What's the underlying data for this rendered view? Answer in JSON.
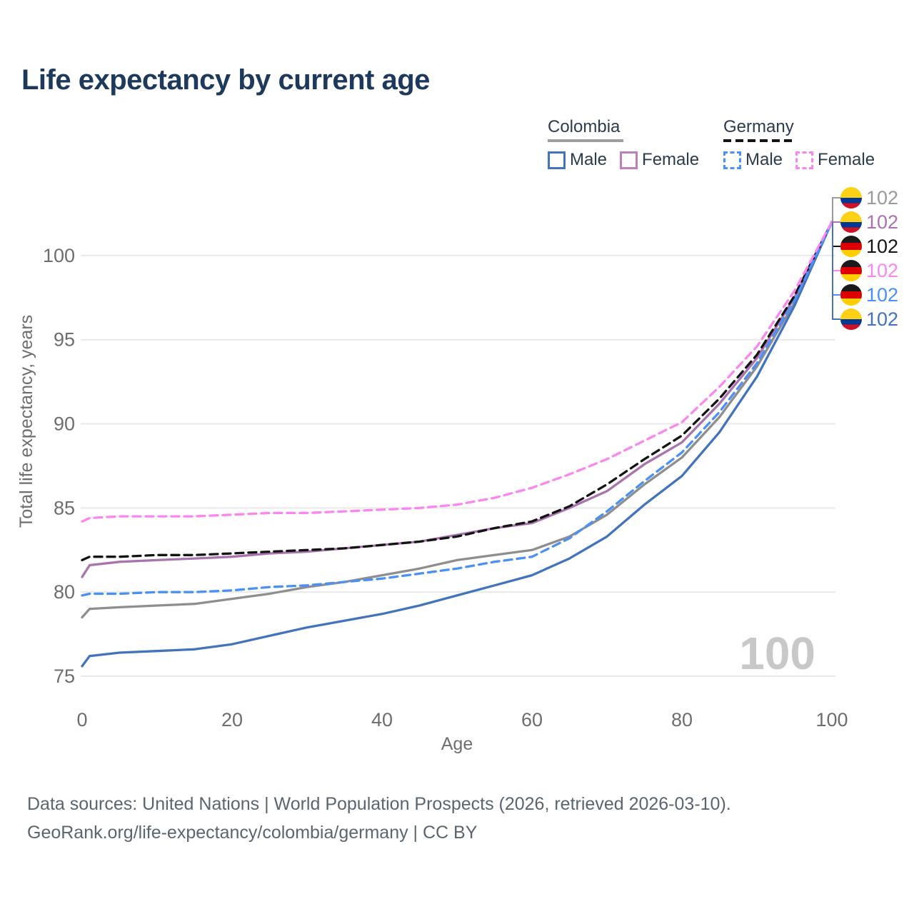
{
  "title": "Life expectancy by current age",
  "legend": {
    "colombia": {
      "title": "Colombia",
      "male_label": "Male",
      "female_label": "Female",
      "line_color": "#9e9e9e",
      "male_color": "#4273bd",
      "female_color": "#bd7fc0"
    },
    "germany": {
      "title": "Germany",
      "male_label": "Male",
      "female_label": "Female",
      "line_color": "#141414",
      "male_color": "#4a90f7",
      "female_color": "#fc86f0"
    }
  },
  "watermark": "100",
  "chart_data": {
    "type": "line",
    "title": "Life expectancy by current age",
    "xlabel": "Age",
    "ylabel": "Total life expectancy, years",
    "xlim": [
      0,
      100
    ],
    "ylim": [
      75,
      102.5
    ],
    "xticks": [
      0,
      20,
      40,
      60,
      80,
      100
    ],
    "yticks": [
      75,
      80,
      85,
      90,
      95,
      100
    ],
    "grid": "horizontal-only",
    "legend_position": "top-right",
    "x": [
      0,
      1,
      5,
      10,
      15,
      20,
      25,
      30,
      35,
      40,
      45,
      50,
      55,
      60,
      65,
      70,
      75,
      80,
      85,
      90,
      95,
      100
    ],
    "series": [
      {
        "name": "Colombia",
        "color": "#8e8e8e",
        "dash": false,
        "values": [
          78.5,
          79.0,
          79.1,
          79.2,
          79.3,
          79.6,
          79.9,
          80.3,
          80.6,
          81.0,
          81.4,
          81.9,
          82.2,
          82.5,
          83.3,
          84.6,
          86.4,
          88.0,
          90.4,
          93.4,
          97.2,
          102
        ]
      },
      {
        "name": "Colombia Male",
        "color": "#4273bd",
        "dash": false,
        "values": [
          75.6,
          76.2,
          76.4,
          76.5,
          76.6,
          76.9,
          77.4,
          77.9,
          78.3,
          78.7,
          79.2,
          79.8,
          80.4,
          81.0,
          82.0,
          83.3,
          85.2,
          86.9,
          89.5,
          92.8,
          97.0,
          102
        ]
      },
      {
        "name": "Colombia Female",
        "color": "#a873ae",
        "dash": false,
        "values": [
          80.9,
          81.6,
          81.8,
          81.9,
          82.0,
          82.1,
          82.3,
          82.4,
          82.6,
          82.8,
          83.0,
          83.4,
          83.8,
          84.1,
          85.0,
          86.0,
          87.6,
          88.9,
          91.2,
          93.9,
          97.5,
          102
        ]
      },
      {
        "name": "Germany",
        "color": "#141414",
        "dash": true,
        "values": [
          81.9,
          82.1,
          82.1,
          82.2,
          82.2,
          82.3,
          82.4,
          82.5,
          82.6,
          82.8,
          83.0,
          83.3,
          83.8,
          84.2,
          85.1,
          86.4,
          87.9,
          89.3,
          91.5,
          94.1,
          97.6,
          102
        ]
      },
      {
        "name": "Germany Male",
        "color": "#4a90f7",
        "dash": true,
        "values": [
          79.8,
          79.9,
          79.9,
          80.0,
          80.0,
          80.1,
          80.3,
          80.4,
          80.6,
          80.8,
          81.1,
          81.4,
          81.8,
          82.1,
          83.2,
          84.8,
          86.6,
          88.3,
          90.7,
          93.6,
          97.3,
          102
        ]
      },
      {
        "name": "Germany Female",
        "color": "#fc86f0",
        "dash": true,
        "values": [
          84.2,
          84.4,
          84.5,
          84.5,
          84.5,
          84.6,
          84.7,
          84.7,
          84.8,
          84.9,
          85.0,
          85.2,
          85.6,
          86.2,
          87.0,
          87.9,
          89.0,
          90.1,
          92.2,
          94.6,
          97.9,
          102
        ]
      }
    ],
    "endpoints": [
      {
        "flag": "colombia",
        "label": "102",
        "color": "#9a9a9a",
        "series": "Colombia"
      },
      {
        "flag": "colombia",
        "label": "102",
        "color": "#a873ae",
        "series": "Colombia Female"
      },
      {
        "flag": "germany",
        "label": "102",
        "color": "#141414",
        "series": "Germany"
      },
      {
        "flag": "germany",
        "label": "102",
        "color": "#fc86f0",
        "series": "Germany Female"
      },
      {
        "flag": "germany",
        "label": "102",
        "color": "#4a90f7",
        "series": "Germany Male"
      },
      {
        "flag": "colombia",
        "label": "102",
        "color": "#4273bd",
        "series": "Colombia Male"
      }
    ],
    "flag_colors": {
      "colombia": [
        "#FCD116",
        "#003893",
        "#CE1126"
      ],
      "germany": [
        "#1a1a1a",
        "#DD0000",
        "#FFCE00"
      ]
    }
  },
  "footer": {
    "line1": "Data sources: United Nations | World Population Prospects (2026, retrieved 2026-03-10).",
    "line2": "GeoRank.org/life-expectancy/colombia/germany | CC BY"
  }
}
